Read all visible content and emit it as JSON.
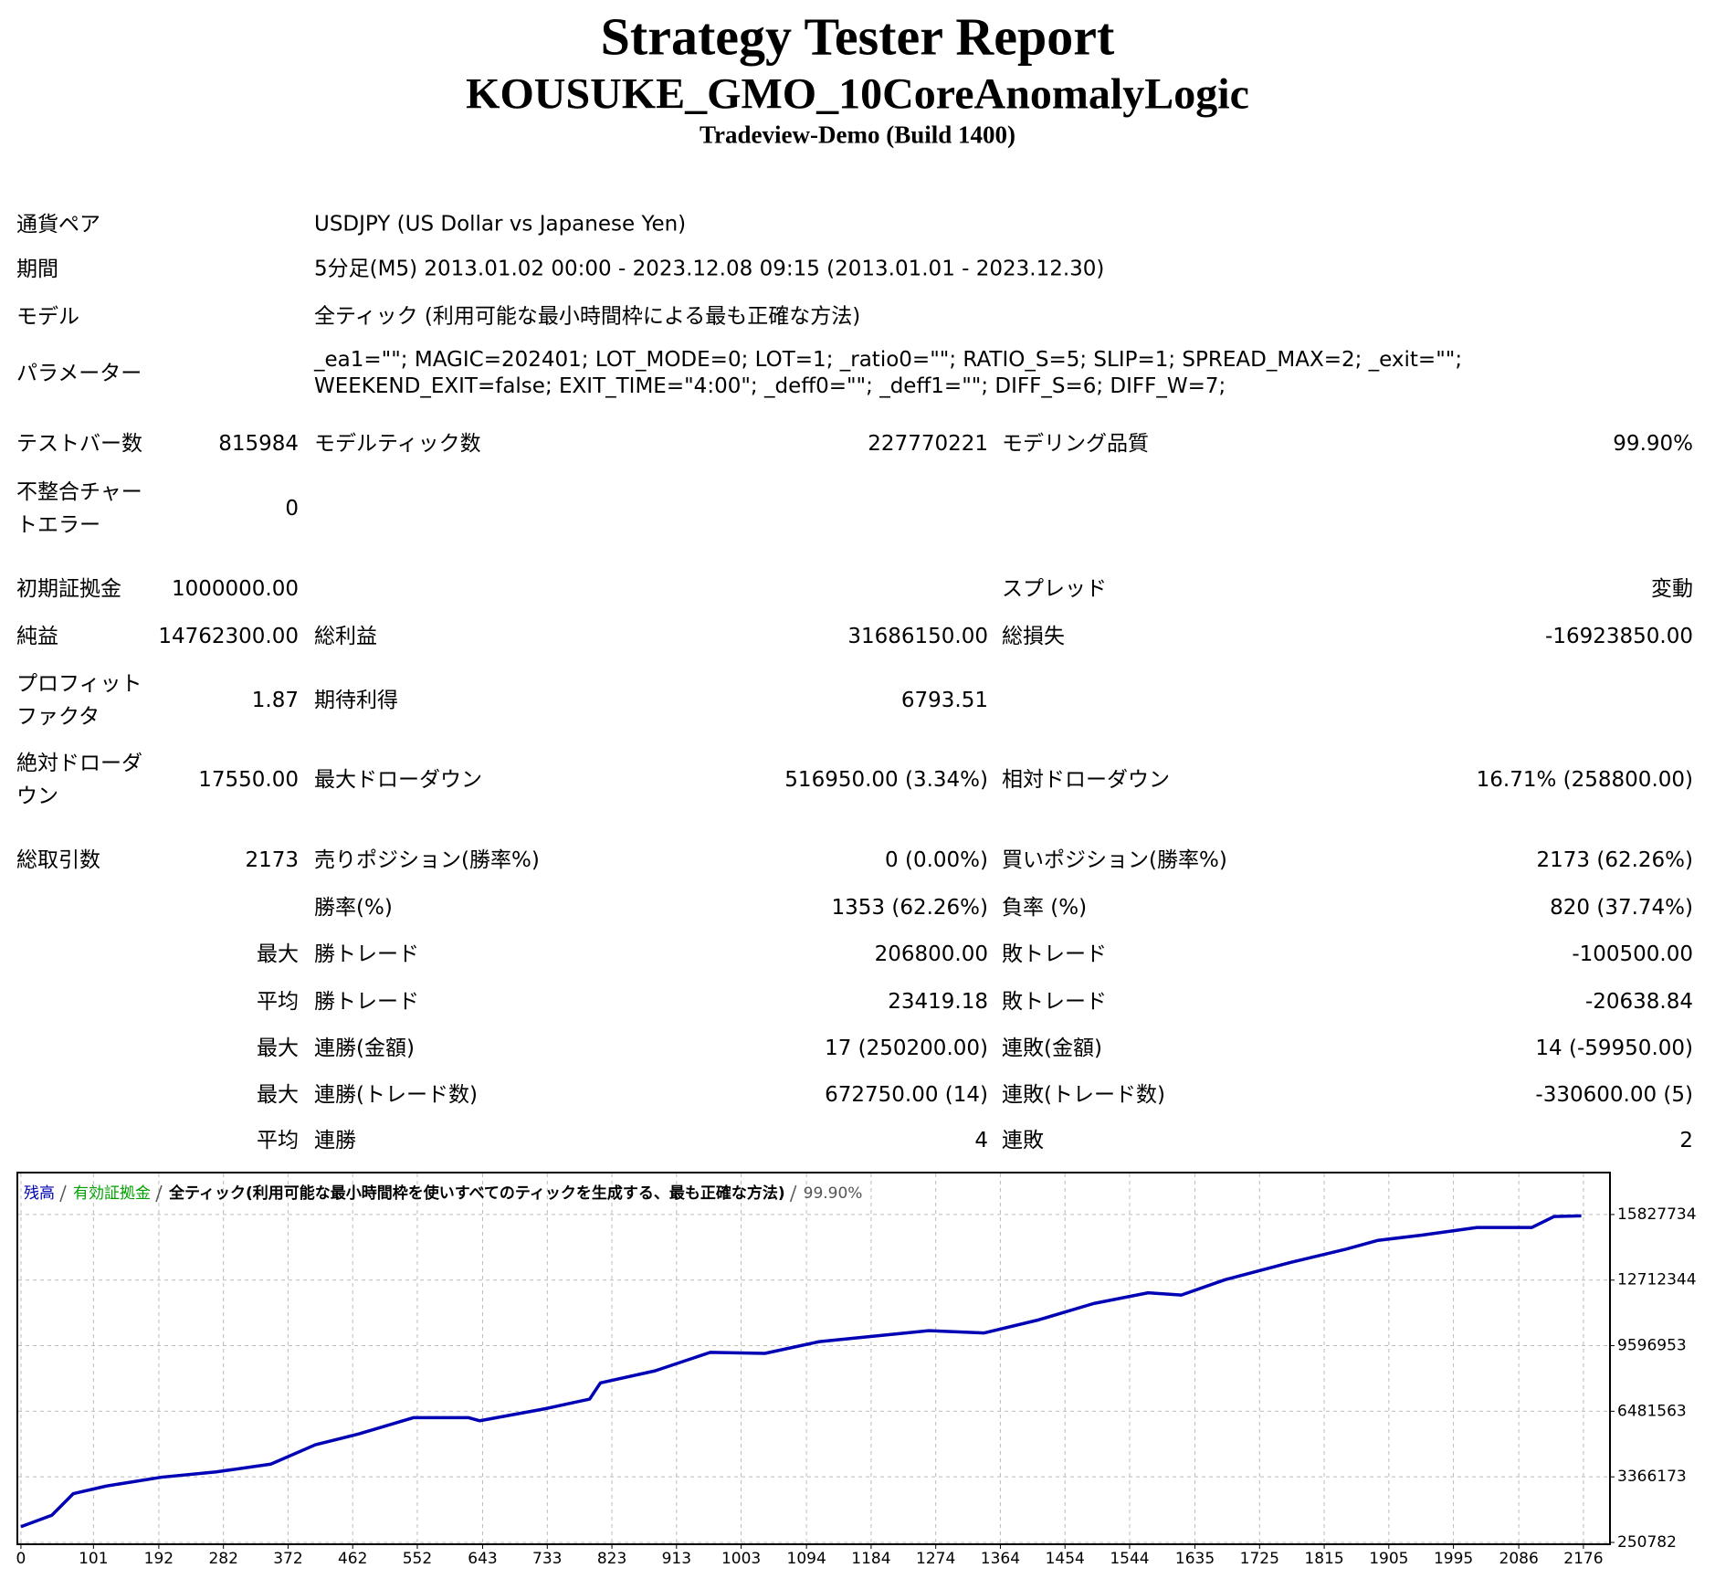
{
  "header": {
    "title": "Strategy Tester Report",
    "expert": "KOUSUKE_GMO_10CoreAnomalyLogic",
    "server": "Tradeview-Demo (Build 1400)"
  },
  "settings": [
    {
      "label": "通貨ペア",
      "value": "USDJPY (US Dollar vs Japanese Yen)"
    },
    {
      "label": "期間",
      "value": "5分足(M5) 2013.01.02 00:00 - 2023.12.08 09:15 (2013.01.01 - 2023.12.30)"
    },
    {
      "label": "モデル",
      "value": "全ティック (利用可能な最小時間枠による最も正確な方法)"
    },
    {
      "label": "パラメーター",
      "value": "_ea1=\"\"; MAGIC=202401; LOT_MODE=0; LOT=1; _ratio0=\"\"; RATIO_S=5; SLIP=1; SPREAD_MAX=2; _exit=\"\"; WEEKEND_EXIT=false; EXIT_TIME=\"4:00\"; _deff0=\"\"; _deff1=\"\"; DIFF_S=6; DIFF_W=7;"
    }
  ],
  "stats": [
    {
      "l1": "テストバー数",
      "v1": "815984",
      "l2": "モデルティック数",
      "v2": "227770221",
      "l3": "モデリング品質",
      "v3": "99.90%"
    },
    {
      "l1": "不整合チャートエラー",
      "v1": "0"
    },
    {
      "l1": "初期証拠金",
      "v1": "1000000.00",
      "l3": "スプレッド",
      "v3": "変動"
    },
    {
      "l1": "純益",
      "v1": "14762300.00",
      "l2": "総利益",
      "v2": "31686150.00",
      "l3": "総損失",
      "v3": "-16923850.00"
    },
    {
      "l1": "プロフィットファクタ",
      "v1": "1.87",
      "l2": "期待利得",
      "v2": "6793.51"
    },
    {
      "l1": "絶対ドローダウン",
      "v1": "17550.00",
      "l2": "最大ドローダウン",
      "v2": "516950.00 (3.34%)",
      "l3": "相対ドローダウン",
      "v3": "16.71% (258800.00)"
    },
    {
      "l1": "総取引数",
      "v1": "2173",
      "l2": "売りポジション(勝率%)",
      "v2": "0 (0.00%)",
      "l3": "買いポジション(勝率%)",
      "v3": "2173 (62.26%)"
    },
    {
      "l2": "勝率(%)",
      "v2": "1353 (62.26%)",
      "l3": "負率 (%)",
      "v3": "820 (37.74%)"
    },
    {
      "v1": "最大",
      "l2": "勝トレード",
      "v2": "206800.00",
      "l3": "敗トレード",
      "v3": "-100500.00"
    },
    {
      "v1": "平均",
      "l2": "勝トレード",
      "v2": "23419.18",
      "l3": "敗トレード",
      "v3": "-20638.84"
    },
    {
      "v1": "最大",
      "l2": "連勝(金額)",
      "v2": "17 (250200.00)",
      "l3": "連敗(金額)",
      "v3": "14 (-59950.00)"
    },
    {
      "v1": "最大",
      "l2": "連勝(トレード数)",
      "v2": "672750.00 (14)",
      "l3": "連敗(トレード数)",
      "v3": "-330600.00 (5)"
    },
    {
      "v1": "平均",
      "l2": "連勝",
      "v2": "4",
      "l3": "連敗",
      "v3": "2"
    }
  ],
  "chart_data": {
    "type": "line",
    "series": [
      {
        "name": "残高",
        "color": "#0000b4",
        "x": [
          0,
          43,
          73,
          119,
          196,
          272,
          348,
          410,
          471,
          547,
          623,
          639,
          730,
          792,
          807,
          883,
          960,
          1036,
          1112,
          1188,
          1265,
          1341,
          1417,
          1494,
          1570,
          1616,
          1677,
          1768,
          1845,
          1890,
          1951,
          2028,
          2104,
          2135,
          2173
        ],
        "values": [
          1000000,
          1540000,
          2570000,
          2930000,
          3350000,
          3600000,
          3970000,
          4890000,
          5410000,
          6180000,
          6180000,
          6030000,
          6600000,
          7060000,
          7830000,
          8400000,
          9280000,
          9230000,
          9790000,
          10050000,
          10310000,
          10200000,
          10820000,
          11600000,
          12110000,
          12000000,
          12730000,
          13550000,
          14180000,
          14600000,
          14850000,
          15210000,
          15210000,
          15730000,
          15762300
        ]
      }
    ],
    "equity": {
      "name": "有効証拠金",
      "color": "#00a000"
    },
    "model": "全ティック(利用可能な最小時間枠を使いすべてのティックを生成する、最も正確な方法)",
    "quality": "99.90%",
    "xlim": [
      -5,
      2213
    ],
    "xticks": [
      0,
      101,
      192,
      282,
      372,
      462,
      552,
      643,
      733,
      823,
      913,
      1003,
      1094,
      1184,
      1274,
      1364,
      1454,
      1544,
      1635,
      1725,
      1815,
      1905,
      1995,
      2086,
      2176
    ],
    "ylim": [
      164000,
      17820000
    ],
    "yticks": [
      250782,
      3366173,
      6481563,
      9596953,
      12712344,
      15827734
    ],
    "grid": true
  }
}
